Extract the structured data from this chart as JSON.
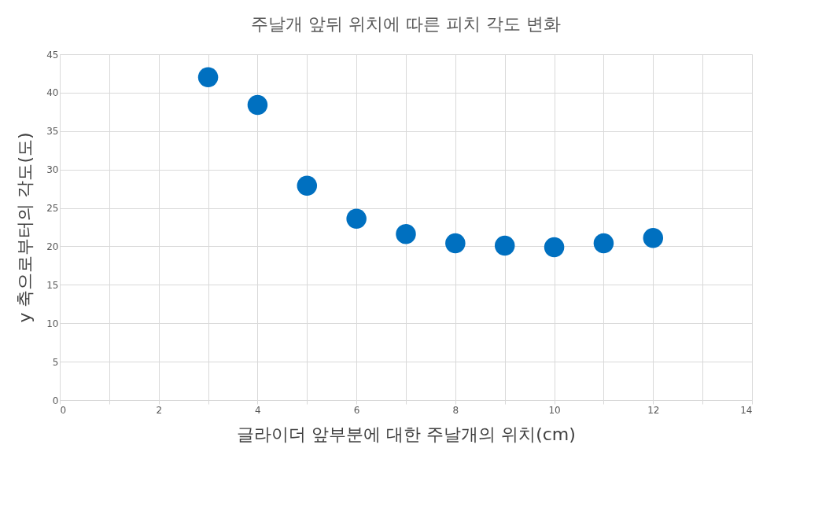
{
  "chart_data": {
    "type": "scatter",
    "title": "주날개 앞뒤 위치에 따른 피치 각도 변화",
    "xlabel": "글라이더 앞부분에 대한 주날개의 위치(cm)",
    "ylabel": "y 축으로부터의  각도(도)",
    "x": [
      3,
      4,
      5,
      6,
      7,
      8,
      9,
      10,
      11,
      12
    ],
    "series": [
      {
        "color": "#0070c0",
        "values": [
          42,
          38.4,
          27.9,
          23.6,
          21.6,
          20.4,
          20.1,
          19.9,
          20.4,
          21.1
        ]
      }
    ],
    "xlim": [
      0,
      14
    ],
    "xticks": [
      0,
      {
        "value": 1,
        "label": null
      },
      2,
      {
        "value": 3,
        "label": null
      },
      4,
      {
        "value": 5,
        "label": null
      },
      6,
      {
        "value": 7,
        "label": null
      },
      8,
      {
        "value": 9,
        "label": null
      },
      10,
      {
        "value": 11,
        "label": null
      },
      12,
      {
        "value": 13,
        "label": null
      },
      14
    ],
    "ylim": [
      0,
      45
    ],
    "yticks": [
      0,
      5,
      10,
      15,
      20,
      25,
      30,
      35,
      40,
      45
    ],
    "grid": true,
    "marker": "circle"
  }
}
